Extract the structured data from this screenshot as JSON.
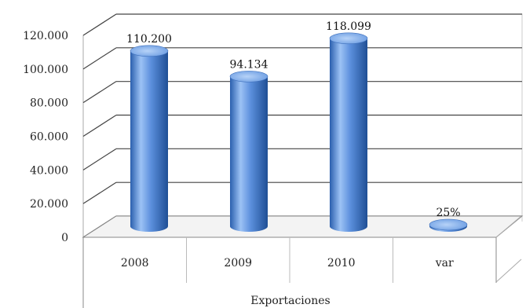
{
  "chart_data": {
    "type": "bar",
    "style": "3d-cylinder",
    "categories": [
      "2008",
      "2009",
      "2010",
      "var"
    ],
    "values": [
      110200,
      94134,
      118099,
      25
    ],
    "data_labels": [
      "110.200",
      "94.134",
      "118.099",
      "25%"
    ],
    "title": "",
    "xlabel": "Exportaciones",
    "ylabel": "",
    "ylim": [
      0,
      120000
    ],
    "y_ticks": [
      0,
      20000,
      40000,
      60000,
      80000,
      100000,
      120000
    ],
    "y_tick_labels": [
      "0",
      "20.000",
      "40.000",
      "60.000",
      "80.000",
      "100.000",
      "120.000"
    ],
    "grid": true,
    "legend": "none",
    "colors": {
      "bar": "#4a7fd0",
      "bar_light": "#9cc2f5",
      "bar_dark": "#24549a",
      "grid": "#555555",
      "frame": "#999999"
    }
  }
}
